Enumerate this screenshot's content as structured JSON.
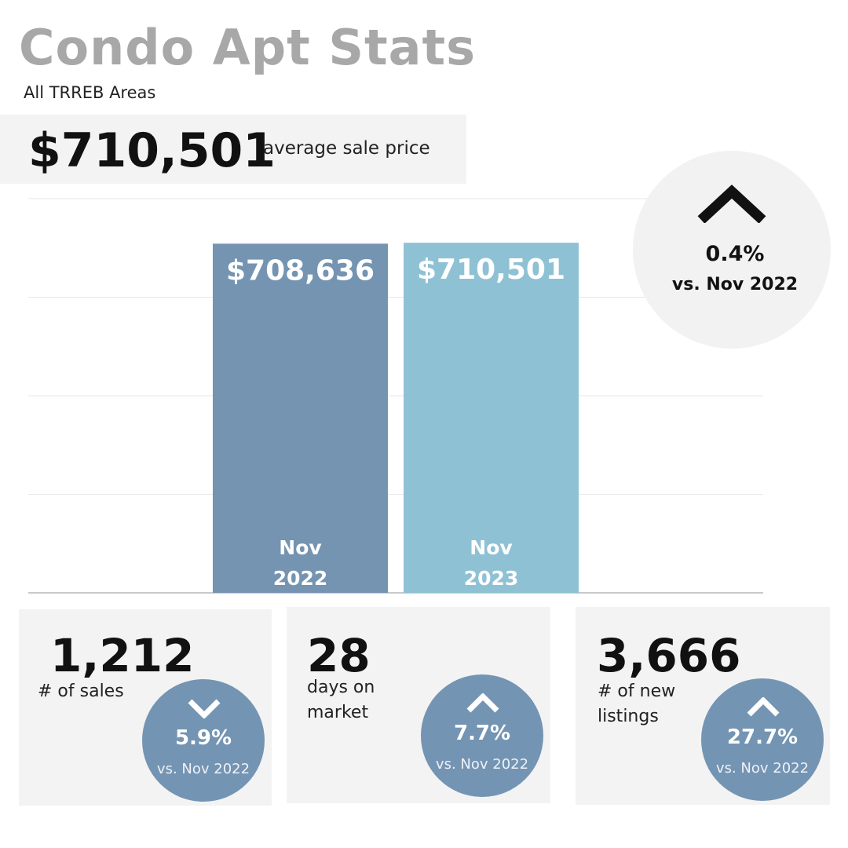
{
  "header": {
    "title": "Condo Apt Stats",
    "subtitle": "All TRREB Areas",
    "average_price": "$710,501",
    "average_price_label": "average sale price"
  },
  "colors": {
    "bar_2022": "#7494b1",
    "bar_2023": "#8fc1d5",
    "badge": "#7494b3",
    "title_gray": "#a8a8a8"
  },
  "chart_data": {
    "type": "bar",
    "categories": [
      "Nov 2022",
      "Nov 2023"
    ],
    "category_lines": [
      [
        "Nov",
        "2022"
      ],
      [
        "Nov",
        "2023"
      ]
    ],
    "values": [
      708636,
      710501
    ],
    "value_labels": [
      "$708,636",
      "$710,501"
    ],
    "title": "",
    "xlabel": "",
    "ylabel": "",
    "ylim": [
      0,
      800000
    ],
    "grid": true,
    "legend": "none"
  },
  "overall_change": {
    "direction": "up",
    "icon": "chevron-up-icon",
    "percent": "0.4%",
    "comparison": "vs. Nov 2022"
  },
  "cards": [
    {
      "value": "1,212",
      "label": "# of sales",
      "direction": "down",
      "icon": "chevron-down-icon",
      "percent": "5.9%",
      "comparison": "vs. Nov 2022"
    },
    {
      "value": "28",
      "label": "days on market",
      "direction": "up",
      "icon": "chevron-up-icon",
      "percent": "7.7%",
      "comparison": "vs. Nov 2022"
    },
    {
      "value": "3,666",
      "label": "# of new listings",
      "direction": "up",
      "icon": "chevron-up-icon",
      "percent": "27.7%",
      "comparison": "vs. Nov 2022"
    }
  ]
}
